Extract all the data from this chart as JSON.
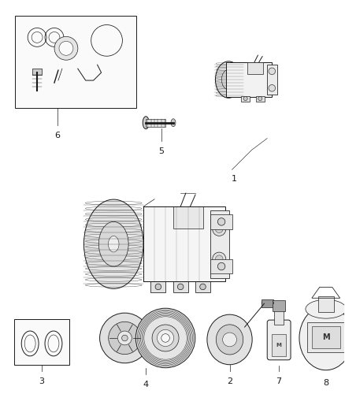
{
  "bg_color": "#ffffff",
  "figsize": [
    4.38,
    5.33
  ],
  "dpi": 100,
  "lc": "#1a1a1a",
  "tc": "#1a1a1a",
  "lw": 0.7
}
